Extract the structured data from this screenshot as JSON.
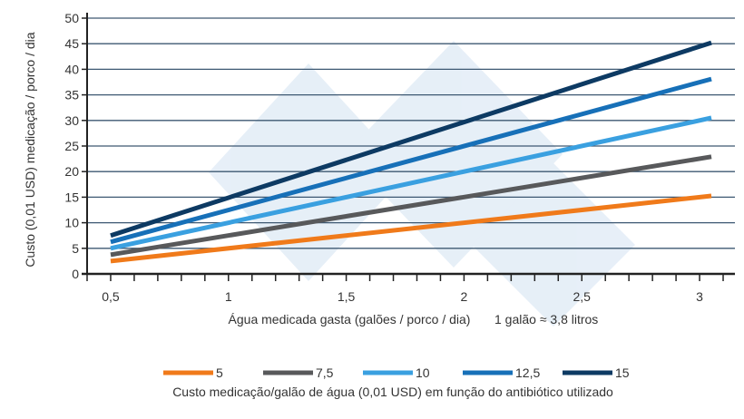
{
  "chart_data": {
    "type": "line",
    "title": "",
    "xlabel": "Água medicada gasta (galões / porco / dia)",
    "xlabel_note": "1 galão ≈ 3,8 litros",
    "ylabel": "Custo (0,01 USD) medicação / porco / dia",
    "xlim": [
      0.4,
      3.15
    ],
    "ylim": [
      0,
      50
    ],
    "x_ticks": [
      0.5,
      1,
      1.5,
      2,
      2.5,
      3
    ],
    "x_tick_labels": [
      "0,5",
      "1",
      "1,5",
      "2",
      "2,5",
      "3"
    ],
    "x_minor_step": 0.1,
    "y_ticks": [
      0,
      5,
      10,
      15,
      20,
      25,
      30,
      35,
      40,
      45,
      50
    ],
    "y_tick_labels": [
      "0",
      "5",
      "10",
      "15",
      "20",
      "25",
      "30",
      "35",
      "40",
      "45",
      "50"
    ],
    "grid": "horizontal",
    "legend_title": "Custo medicação/galão de água (0,01 USD) em função do antibiótico utilizado",
    "legend_position": "bottom",
    "series": [
      {
        "name": "5",
        "color": "#f07a1a",
        "x": [
          0.5,
          3.05
        ],
        "y": [
          2.5,
          15.25
        ]
      },
      {
        "name": "7,5",
        "color": "#58595b",
        "x": [
          0.5,
          3.05
        ],
        "y": [
          3.75,
          22.9
        ]
      },
      {
        "name": "10",
        "color": "#3aa0e0",
        "x": [
          0.5,
          3.05
        ],
        "y": [
          5,
          30.5
        ]
      },
      {
        "name": "12,5",
        "color": "#1770b8",
        "x": [
          0.5,
          3.05
        ],
        "y": [
          6.25,
          38.1
        ]
      },
      {
        "name": "15",
        "color": "#0d3a63",
        "x": [
          0.5,
          3.05
        ],
        "y": [
          7.5,
          45.2
        ]
      }
    ]
  }
}
